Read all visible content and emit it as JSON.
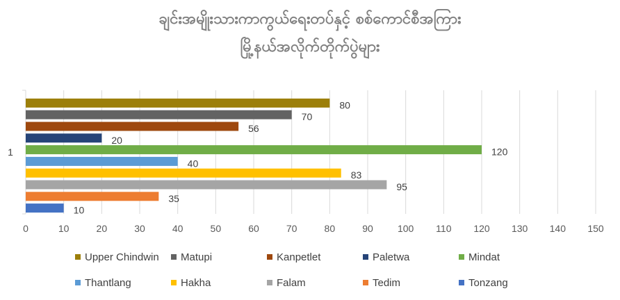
{
  "chart_data": {
    "type": "bar",
    "orientation": "horizontal",
    "title_lines": [
      "ချင်းအမျိုးသားကာကွယ်ရေးတပ်နှင့် စစ်ကောင်စီအကြား",
      "မြို့နယ်အလိုက်တိုက်ပွဲများ"
    ],
    "category_label": "1",
    "xlim": [
      0,
      150
    ],
    "x_ticks": [
      "0",
      "10",
      "20",
      "30",
      "40",
      "50",
      "60",
      "70",
      "80",
      "90",
      "100",
      "110",
      "120",
      "130",
      "140",
      "150"
    ],
    "grid": true,
    "legend_position": "bottom",
    "series": [
      {
        "name": "Upper Chindwin",
        "value": 80,
        "color": "#9C7F0A"
      },
      {
        "name": "Matupi",
        "value": 70,
        "color": "#636363"
      },
      {
        "name": "Kanpetlet",
        "value": 56,
        "color": "#9E480E"
      },
      {
        "name": "Paletwa",
        "value": 20,
        "color": "#264478"
      },
      {
        "name": "Mindat",
        "value": 120,
        "color": "#70AD47"
      },
      {
        "name": "Thantlang",
        "value": 40,
        "color": "#5B9BD5"
      },
      {
        "name": "Hakha",
        "value": 83,
        "color": "#FFC000"
      },
      {
        "name": "Falam",
        "value": 95,
        "color": "#A5A5A5"
      },
      {
        "name": "Tedim",
        "value": 35,
        "color": "#ED7D31"
      },
      {
        "name": "Tonzang",
        "value": 10,
        "color": "#4472C4"
      }
    ]
  }
}
